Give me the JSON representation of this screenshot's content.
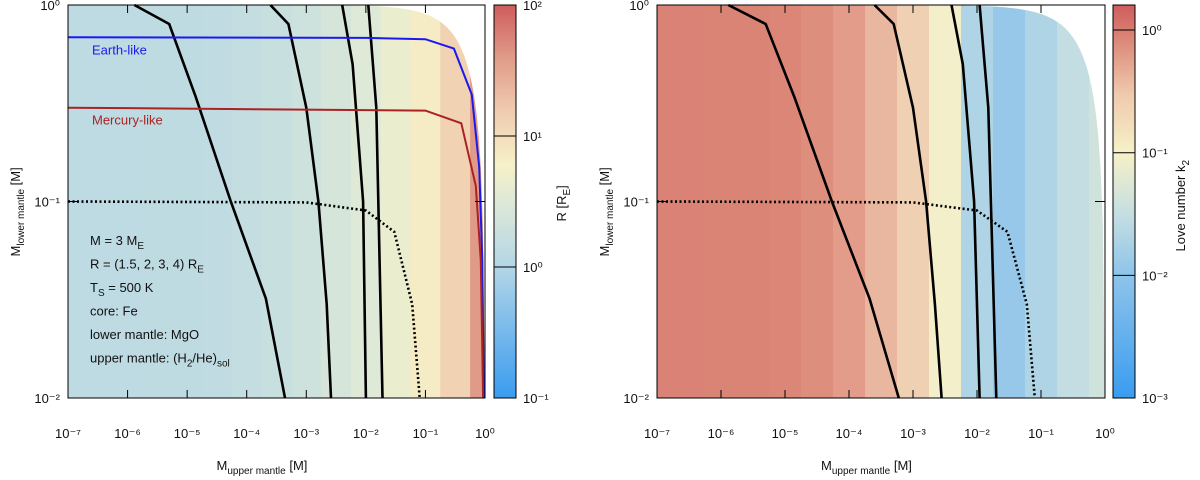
{
  "chart_data": [
    {
      "type": "heatmap",
      "xlabel": [
        "M",
        "upper mantle",
        " [M]"
      ],
      "ylabel": [
        "M",
        "lower mantle",
        " [M]"
      ],
      "log_x": true,
      "log_y": true,
      "xlim": [
        1e-07,
        1
      ],
      "ylim": [
        0.01,
        1
      ],
      "xticks": [
        {
          "value": 1e-07,
          "label": "10⁻⁷"
        },
        {
          "value": 1e-06,
          "label": "10⁻⁶"
        },
        {
          "value": 1e-05,
          "label": "10⁻⁵"
        },
        {
          "value": 0.0001,
          "label": "10⁻⁴"
        },
        {
          "value": 0.001,
          "label": "10⁻³"
        },
        {
          "value": 0.01,
          "label": "10⁻²"
        },
        {
          "value": 0.1,
          "label": "10⁻¹"
        },
        {
          "value": 1,
          "label": "10⁰"
        }
      ],
      "yticks": [
        {
          "value": 0.01,
          "label": "10⁻²"
        },
        {
          "value": 0.1,
          "label": "10⁻¹"
        },
        {
          "value": 1,
          "label": "10⁰"
        }
      ],
      "heatmap": {
        "x": [
          1e-07,
          3.16e-07,
          1e-06,
          3.16e-06,
          1e-05,
          3.16e-05,
          0.0001,
          0.000316,
          0.001,
          0.00316,
          0.01,
          0.0316,
          0.1,
          0.316,
          1
        ],
        "values": [
          1.3,
          1.3,
          1.3,
          1.35,
          1.35,
          1.4,
          1.5,
          1.7,
          2,
          2.5,
          3.2,
          4.5,
          7,
          13,
          40
        ]
      },
      "colorbar": {
        "label": [
          "R [R",
          "E",
          "]"
        ],
        "lim": [
          0.1,
          100
        ],
        "ticks": [
          {
            "value": 0.1,
            "label": "10⁻¹"
          },
          {
            "value": 1,
            "label": "10⁰"
          },
          {
            "value": 10,
            "label": "10¹"
          },
          {
            "value": 100,
            "label": "10²"
          }
        ],
        "colormap": [
          [
            0.1,
            "#3a9cf0"
          ],
          [
            0.5,
            "#8ec4ea"
          ],
          [
            1,
            "#b4d6e6"
          ],
          [
            3,
            "#dce8d8"
          ],
          [
            6,
            "#f6f1c8"
          ],
          [
            15,
            "#f0cdb0"
          ],
          [
            40,
            "#e09a88"
          ],
          [
            100,
            "#cf5c5c"
          ]
        ]
      },
      "series": [
        {
          "color": "#000000",
          "x": [
            1.3e-06,
            5e-06,
            1.4e-05,
            5.4e-05,
            0.00021,
            0.00044
          ],
          "values": [
            1,
            0.8,
            0.34,
            0.1,
            0.032,
            0.01
          ]
        },
        {
          "color": "#000000",
          "x": [
            0.00025,
            0.0005,
            0.001,
            0.0016,
            0.0022,
            0.0026
          ],
          "values": [
            1,
            0.8,
            0.3,
            0.1,
            0.03,
            0.01
          ]
        },
        {
          "color": "#000000",
          "x": [
            0.004,
            0.006,
            0.009,
            0.01
          ],
          "values": [
            1,
            0.5,
            0.1,
            0.01
          ]
        },
        {
          "color": "#000000",
          "x": [
            0.011,
            0.015,
            0.019
          ],
          "values": [
            1,
            0.3,
            0.01
          ]
        },
        {
          "color": "#000000",
          "dash": "dotted",
          "x": [
            1e-07,
            0.001,
            0.01,
            0.03,
            0.06,
            0.08
          ],
          "values": [
            0.1,
            0.099,
            0.09,
            0.07,
            0.03,
            0.01
          ]
        },
        {
          "name": "Earth-like",
          "color": "#1a1aee",
          "x": [
            1e-07,
            0.01,
            0.1,
            0.3,
            0.6,
            0.8,
            0.9,
            0.95
          ],
          "values": [
            0.685,
            0.68,
            0.67,
            0.6,
            0.35,
            0.15,
            0.05,
            0.01
          ]
        },
        {
          "name": "Mercury-like",
          "color": "#aa2222",
          "x": [
            1e-07,
            0.1,
            0.4,
            0.7,
            0.85,
            0.93
          ],
          "values": [
            0.3,
            0.29,
            0.25,
            0.12,
            0.05,
            0.01
          ]
        }
      ],
      "annotations": [
        [
          "M = 3 M",
          "E"
        ],
        [
          "R = (1.5, 2, 3, 4) R",
          "E"
        ],
        [
          "T",
          "S",
          " = 500 K"
        ],
        [
          "core: Fe"
        ],
        [
          "lower mantle: MgO"
        ],
        [
          "upper mantle: (H",
          "2",
          "/He)",
          "sol"
        ]
      ]
    },
    {
      "type": "heatmap",
      "xlabel": [
        "M",
        "upper mantle",
        " [M]"
      ],
      "ylabel": [
        "M",
        "lower mantle",
        " [M]"
      ],
      "log_x": true,
      "log_y": true,
      "xlim": [
        1e-07,
        1
      ],
      "ylim": [
        0.01,
        1
      ],
      "xticks": [
        {
          "value": 1e-07,
          "label": "10⁻⁷"
        },
        {
          "value": 1e-06,
          "label": "10⁻⁶"
        },
        {
          "value": 1e-05,
          "label": "10⁻⁵"
        },
        {
          "value": 0.0001,
          "label": "10⁻⁴"
        },
        {
          "value": 0.001,
          "label": "10⁻³"
        },
        {
          "value": 0.01,
          "label": "10⁻²"
        },
        {
          "value": 0.1,
          "label": "10⁻¹"
        },
        {
          "value": 1,
          "label": "10⁰"
        }
      ],
      "yticks": [
        {
          "value": 0.01,
          "label": "10⁻²"
        },
        {
          "value": 0.1,
          "label": "10⁻¹"
        },
        {
          "value": 1,
          "label": "10⁰"
        }
      ],
      "heatmap": {
        "x": [
          1e-07,
          3.16e-07,
          1e-06,
          3.16e-06,
          1e-05,
          3.16e-05,
          0.0001,
          0.000316,
          0.001,
          0.00316,
          0.01,
          0.0316,
          0.1,
          0.316,
          1
        ],
        "values": [
          0.9,
          0.9,
          0.88,
          0.87,
          0.85,
          0.75,
          0.6,
          0.4,
          0.25,
          0.09,
          0.02,
          0.012,
          0.02,
          0.03,
          0.04
        ]
      },
      "colorbar": {
        "label": [
          "Love number k",
          "2"
        ],
        "lim": [
          0.001,
          1.6
        ],
        "ticks": [
          {
            "value": 0.001,
            "label": "10⁻³"
          },
          {
            "value": 0.01,
            "label": "10⁻²"
          },
          {
            "value": 0.1,
            "label": "10⁻¹"
          },
          {
            "value": 1,
            "label": "10⁰"
          }
        ],
        "colormap": [
          [
            0.001,
            "#3a9cf0"
          ],
          [
            0.01,
            "#8ec4ea"
          ],
          [
            0.03,
            "#c3dde2"
          ],
          [
            0.1,
            "#f6f1c8"
          ],
          [
            0.3,
            "#efc9ae"
          ],
          [
            0.8,
            "#dc8a7a"
          ],
          [
            1.6,
            "#cf5c5c"
          ]
        ]
      },
      "series": [
        {
          "color": "#000000",
          "x": [
            1.3e-06,
            5e-06,
            1.4e-05,
            5.4e-05,
            0.00021,
            0.0006
          ],
          "values": [
            1,
            0.8,
            0.34,
            0.1,
            0.032,
            0.01
          ]
        },
        {
          "color": "#000000",
          "x": [
            0.00025,
            0.0005,
            0.001,
            0.0016,
            0.0022,
            0.0028
          ],
          "values": [
            1,
            0.8,
            0.3,
            0.1,
            0.03,
            0.01
          ]
        },
        {
          "color": "#000000",
          "x": [
            0.004,
            0.006,
            0.009,
            0.011
          ],
          "values": [
            1,
            0.5,
            0.1,
            0.01
          ]
        },
        {
          "color": "#000000",
          "x": [
            0.011,
            0.015,
            0.02
          ],
          "values": [
            1,
            0.3,
            0.01
          ]
        },
        {
          "color": "#000000",
          "dash": "dotted",
          "x": [
            1e-07,
            0.001,
            0.01,
            0.03,
            0.06,
            0.08
          ],
          "values": [
            0.1,
            0.099,
            0.09,
            0.07,
            0.03,
            0.01
          ]
        }
      ]
    }
  ]
}
